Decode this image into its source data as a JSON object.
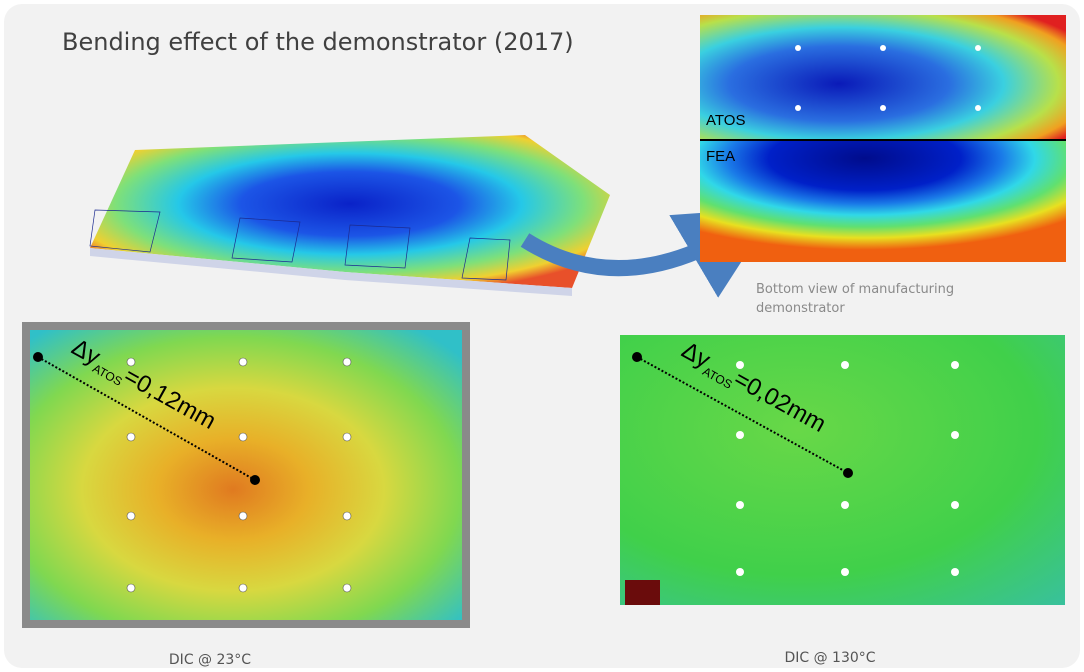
{
  "title": "Bending effect of the demonstrator (2017)",
  "top_right": {
    "upper_label": "ATOS",
    "lower_label": "FEA",
    "caption": "Bottom view of manufacturing demonstrator"
  },
  "annotations": [
    {
      "delta": "Δy",
      "subscript": "ATOS",
      "value": "=0,12mm"
    },
    {
      "delta": "Δy",
      "subscript": "ATOS",
      "value": "=0,02mm"
    }
  ],
  "captions": [
    "DIC @ 23°C",
    "DIC @ 130°C"
  ]
}
